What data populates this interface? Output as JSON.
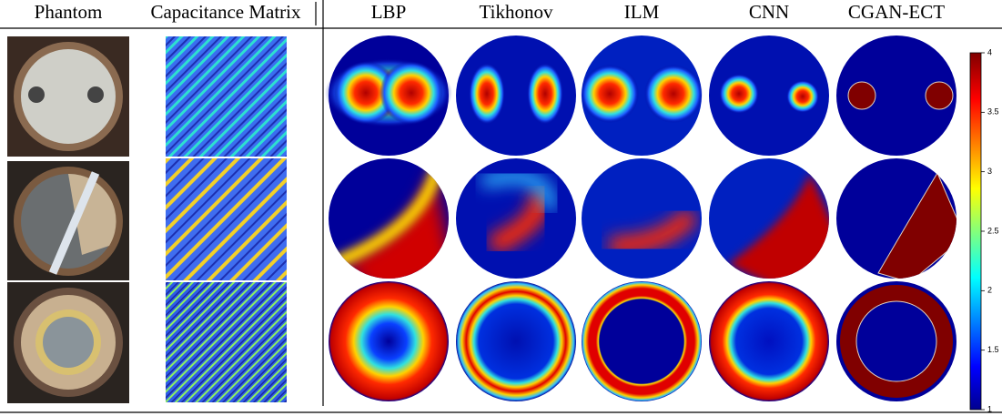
{
  "header": {
    "columns": [
      "Phantom",
      "Capacitance Matrix",
      "LBP",
      "Tikhonov",
      "ILM",
      "CNN",
      "CGAN-ECT"
    ]
  },
  "colorbar": {
    "lim": [
      1,
      4
    ],
    "ticks": [
      1,
      1.5,
      2,
      2.5,
      3,
      3.5,
      4
    ]
  }
}
